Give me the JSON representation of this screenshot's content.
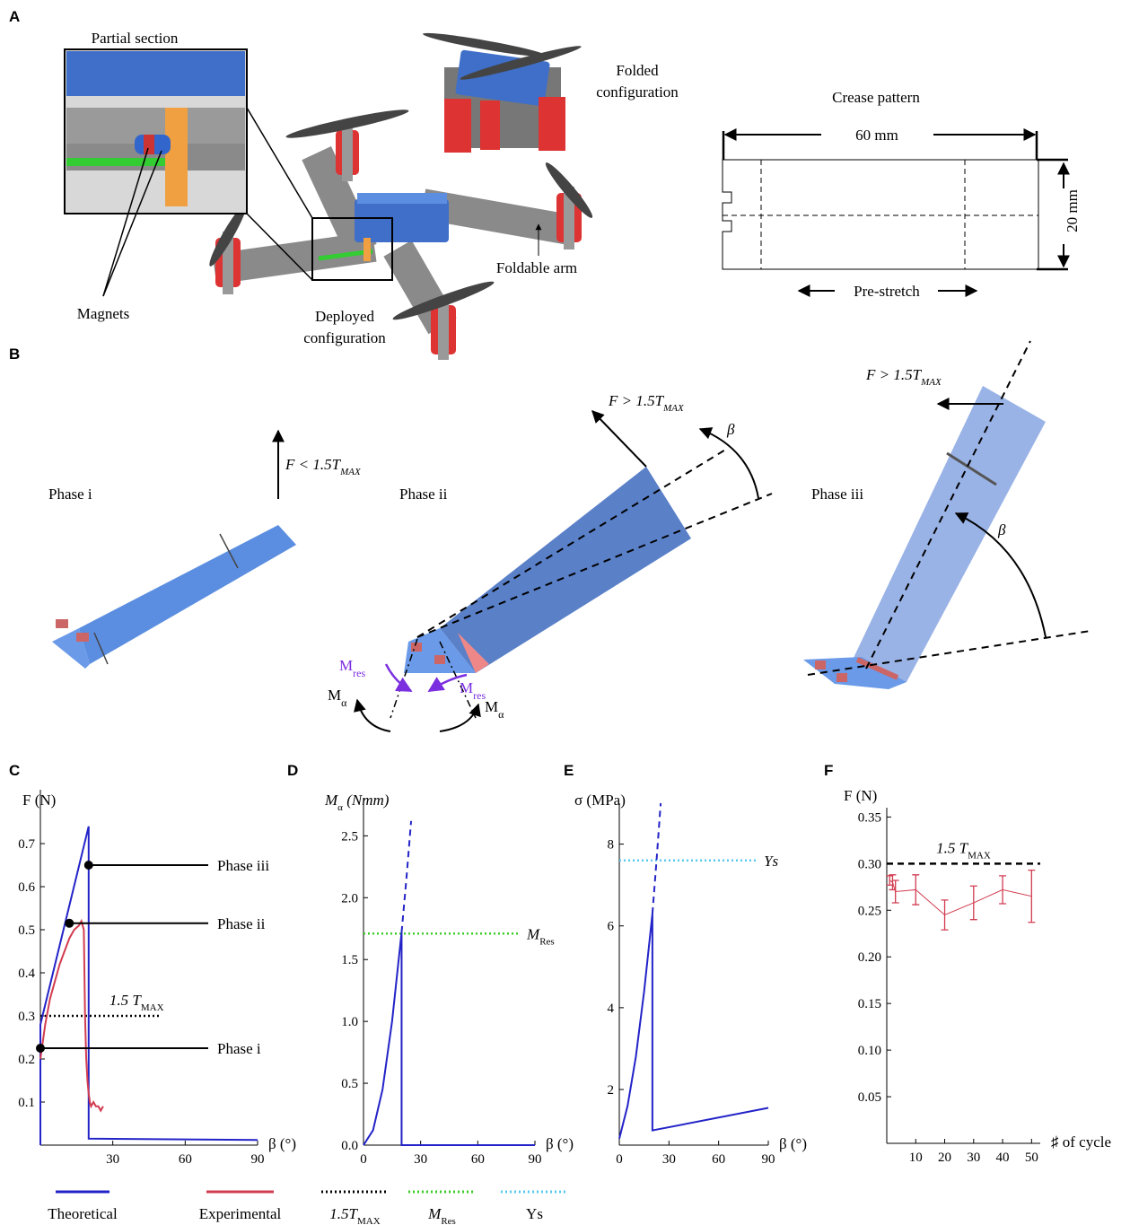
{
  "panel_a": {
    "label": "A",
    "inset_title": "Partial section",
    "magnets": "Magnets",
    "folded": [
      "Folded",
      "configuration"
    ],
    "deployed": [
      "Deployed",
      "configuration"
    ],
    "arm": "Foldable arm",
    "crease_title": "Crease pattern",
    "width": "60 mm",
    "height": "20 mm",
    "prestretch": "Pre-stretch"
  },
  "panel_b": {
    "label": "B",
    "phase_i": "Phase i",
    "phase_ii": "Phase ii",
    "phase_iii": "Phase iii",
    "force_i": [
      "F < 1.5T",
      "MAX"
    ],
    "force_ii": [
      "F > 1.5T",
      "MAX"
    ],
    "force_iii": [
      "F > 1.5T",
      "MAX"
    ],
    "beta": "β",
    "m_res": [
      "M",
      "res"
    ],
    "m_alpha": [
      "M",
      "α"
    ]
  },
  "chart_data": [
    {
      "type": "line",
      "label": "C",
      "y_label": "F (N)",
      "x_label": "β (°)",
      "xlim": [
        0,
        90
      ],
      "ylim": [
        0,
        0.825
      ],
      "xticks": [
        30,
        60,
        90
      ],
      "yticks": [
        0.1,
        0.2,
        0.3,
        0.4,
        0.5,
        0.6,
        0.7
      ],
      "series": [
        {
          "name": "Theoretical",
          "color": "#2323c8",
          "style": "solid",
          "x": [
            0,
            0,
            20,
            20,
            90
          ],
          "values": [
            0,
            0.28,
            0.74,
            0.015,
            0.012
          ]
        },
        {
          "name": "Experimental",
          "color": "#d23c50",
          "style": "solid",
          "x": [
            0,
            1,
            2,
            3,
            4,
            6,
            8,
            10,
            12,
            14,
            16,
            17,
            18,
            18.5,
            19,
            19.5,
            20,
            20.5,
            21,
            22,
            23,
            24,
            25,
            26
          ],
          "values": [
            0.2,
            0.24,
            0.28,
            0.31,
            0.34,
            0.38,
            0.42,
            0.45,
            0.48,
            0.5,
            0.51,
            0.52,
            0.5,
            0.3,
            0.2,
            0.15,
            0.12,
            0.1,
            0.09,
            0.1,
            0.09,
            0.09,
            0.08,
            0.09
          ]
        }
      ],
      "reference_lines": [
        {
          "label": [
            "1.5 T",
            "MAX"
          ],
          "value": 0.3,
          "x_range": [
            0,
            50
          ],
          "color": "#000000",
          "style": "dotted"
        }
      ],
      "annotations": [
        {
          "text": "Phase i",
          "x": 0,
          "y": 0.225
        },
        {
          "text": "Phase ii",
          "x": 12,
          "y": 0.515
        },
        {
          "text": "Phase iii",
          "x": 20,
          "y": 0.65
        }
      ]
    },
    {
      "type": "line",
      "label": "D",
      "y_label": [
        "M",
        "α",
        " (Nmm)"
      ],
      "x_label": "β (°)",
      "xlim": [
        0,
        90
      ],
      "ylim": [
        0,
        2.8
      ],
      "xticks": [
        0,
        30,
        60,
        90
      ],
      "yticks": [
        {
          "value": 0,
          "label": "0.0"
        },
        0.5,
        {
          "value": 1,
          "label": "1.0"
        },
        1.5,
        {
          "value": 2,
          "label": "2.0"
        },
        2.5
      ],
      "series": [
        {
          "name": "Theoretical",
          "color": "#2323c8",
          "style": "solid",
          "x": [
            0,
            5,
            10,
            15,
            20,
            20,
            90
          ],
          "values": [
            0,
            0.12,
            0.45,
            1.0,
            1.72,
            0,
            0
          ]
        },
        {
          "color": "#2323c8",
          "style": "dashed",
          "x": [
            20,
            22.5,
            25
          ],
          "values": [
            1.72,
            2.15,
            2.62
          ]
        }
      ],
      "reference_lines": [
        {
          "label": [
            "M",
            "Res"
          ],
          "value": 1.71,
          "x_range": [
            0,
            82
          ],
          "color": "#3ccc28",
          "style": "dotted"
        }
      ]
    },
    {
      "type": "line",
      "label": "E",
      "y_label": "σ (MPa)",
      "x_label": "β (°)",
      "xlim": [
        0,
        90
      ],
      "ylim": [
        0.64,
        9.0
      ],
      "xticks": [
        0,
        30,
        60,
        90
      ],
      "yticks": [
        2,
        4,
        6,
        8
      ],
      "series": [
        {
          "name": "Theoretical",
          "color": "#2323c8",
          "style": "solid",
          "x": [
            0,
            5,
            10,
            15,
            20,
            20,
            90
          ],
          "values": [
            0.8,
            1.6,
            2.8,
            4.4,
            6.3,
            1.0,
            1.55
          ]
        },
        {
          "color": "#2323c8",
          "style": "dashed",
          "x": [
            20,
            22.5,
            25
          ],
          "values": [
            6.3,
            7.6,
            9.0
          ]
        }
      ],
      "reference_lines": [
        {
          "label": "Ys",
          "value": 7.6,
          "x_range": [
            0,
            83
          ],
          "color": "#5ac8f0",
          "style": "dotted"
        }
      ]
    },
    {
      "type": "errorbar",
      "label": "F",
      "y_label": "F (N)",
      "x_label": "♯ of cycle",
      "xlim": [
        0,
        53
      ],
      "ylim": [
        0,
        0.36
      ],
      "xticks": [
        10,
        20,
        30,
        40,
        50
      ],
      "yticks": [
        0.05,
        {
          "value": 0.1,
          "label": "0.10"
        },
        0.15,
        {
          "value": 0.2,
          "label": "0.20"
        },
        0.25,
        {
          "value": 0.3,
          "label": "0.30"
        },
        0.35
      ],
      "series": [
        {
          "name": "Experimental",
          "color": "#d23c50",
          "style": "solid",
          "x": [
            1,
            2,
            3,
            10,
            20,
            30,
            40,
            50
          ],
          "values": [
            0.282,
            0.28,
            0.27,
            0.272,
            0.245,
            0.258,
            0.272,
            0.265
          ],
          "errors": [
            0.005,
            0.008,
            0.012,
            0.016,
            0.016,
            0.018,
            0.015,
            0.028
          ]
        }
      ],
      "reference_lines": [
        {
          "label": [
            "1.5 T",
            "MAX"
          ],
          "value": 0.3,
          "x_range": [
            0,
            53
          ],
          "color": "#000000",
          "style": "dashed"
        }
      ]
    }
  ],
  "legend": [
    {
      "label": "Theoretical",
      "color": "#2323c8",
      "style": "solid"
    },
    {
      "label": "Experimental",
      "color": "#d23c50",
      "style": "solid"
    },
    {
      "label": [
        "1.5T",
        "MAX"
      ],
      "color": "#000000",
      "style": "dotted"
    },
    {
      "label": [
        "M",
        "Res"
      ],
      "color": "#3ccc28",
      "style": "dotted"
    },
    {
      "label": "Ys",
      "color": "#5ac8f0",
      "style": "dotted"
    }
  ]
}
